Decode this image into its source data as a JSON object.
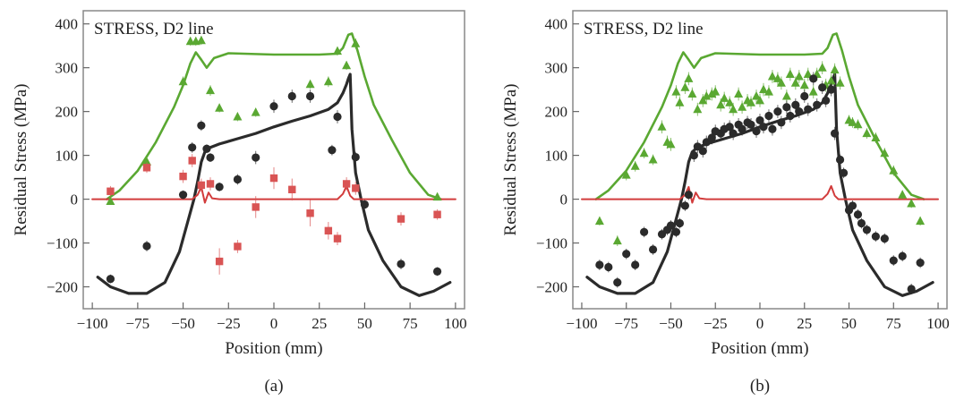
{
  "chart_data": [
    {
      "type": "scatter",
      "panel_label": "(a)",
      "title": "STRESS, D2 line",
      "xlabel": "Position (mm)",
      "ylabel": "Residual Stress (MPa)",
      "xlim": [
        -105,
        105
      ],
      "ylim": [
        -250,
        430
      ],
      "xticks": [
        "−100",
        "−75",
        "−50",
        "−25",
        "0",
        "25",
        "50",
        "75",
        "100"
      ],
      "xtick_values": [
        -100,
        -75,
        -50,
        -25,
        0,
        25,
        50,
        75,
        100
      ],
      "yticks": [
        "−200",
        "−100",
        "0",
        "100",
        "200",
        "300",
        "400"
      ],
      "ytick_values": [
        -200,
        -100,
        0,
        100,
        200,
        300,
        400
      ],
      "colors": {
        "green": "#5aa832",
        "black": "#2b2b2b",
        "red": "#d23c3c",
        "red_marker": "#d95454",
        "frame": "#888888"
      },
      "lines": [
        {
          "name": "green-model",
          "color": "#5aa832",
          "x": [
            -92,
            -85,
            -75,
            -65,
            -55,
            -50,
            -46,
            -43,
            -40,
            -37,
            -33,
            -25,
            0,
            25,
            35,
            38,
            41,
            43,
            46,
            50,
            55,
            65,
            75,
            85,
            92
          ],
          "y": [
            0,
            20,
            65,
            130,
            210,
            260,
            310,
            335,
            318,
            300,
            322,
            333,
            330,
            330,
            332,
            345,
            375,
            378,
            340,
            280,
            215,
            135,
            60,
            10,
            0
          ]
        },
        {
          "name": "black-model",
          "color": "#2b2b2b",
          "x": [
            -97,
            -90,
            -80,
            -70,
            -60,
            -52,
            -48,
            -44,
            -42,
            -40,
            -38,
            -35,
            -30,
            -20,
            -10,
            0,
            10,
            20,
            30,
            35,
            38,
            40,
            41,
            42,
            43,
            45,
            48,
            52,
            60,
            70,
            80,
            88,
            97
          ],
          "y": [
            -178,
            -200,
            -215,
            -215,
            -190,
            -120,
            -60,
            0,
            40,
            85,
            108,
            118,
            126,
            138,
            150,
            165,
            178,
            190,
            205,
            220,
            242,
            262,
            275,
            285,
            160,
            60,
            0,
            -70,
            -140,
            -200,
            -220,
            -210,
            -190
          ]
        },
        {
          "name": "red-model",
          "color": "#d23c3c",
          "x": [
            -100,
            -45,
            -42,
            -40,
            -38,
            -36,
            -34,
            -30,
            0,
            35,
            38,
            40,
            42,
            44,
            100
          ],
          "y": [
            0,
            0,
            10,
            28,
            -8,
            15,
            2,
            0,
            0,
            0,
            12,
            30,
            8,
            0,
            0
          ]
        }
      ],
      "series": [
        {
          "name": "green-data",
          "marker": "triangle",
          "color": "#5aa832",
          "x": [
            -90,
            -70,
            -50,
            -46,
            -43,
            -40,
            -35,
            -30,
            -20,
            -10,
            20,
            30,
            35,
            40,
            45,
            90
          ],
          "y": [
            -5,
            85,
            268,
            360,
            360,
            362,
            248,
            208,
            188,
            198,
            262,
            268,
            338,
            305,
            355,
            5
          ],
          "err": [
            8,
            10,
            12,
            10,
            10,
            10,
            12,
            10,
            10,
            10,
            10,
            12,
            10,
            10,
            12,
            8
          ]
        },
        {
          "name": "black-data",
          "marker": "circle",
          "color": "#2b2b2b",
          "x": [
            -90,
            -70,
            -50,
            -45,
            -40,
            -37,
            -35,
            -30,
            -20,
            -10,
            0,
            10,
            20,
            32,
            35,
            45,
            50,
            70,
            90
          ],
          "y": [
            -182,
            -107,
            10,
            118,
            168,
            115,
            95,
            28,
            45,
            95,
            212,
            235,
            235,
            112,
            188,
            96,
            -12,
            -148,
            -165
          ],
          "err": [
            10,
            12,
            10,
            12,
            12,
            10,
            10,
            10,
            12,
            15,
            15,
            15,
            15,
            12,
            15,
            12,
            10,
            12,
            10
          ]
        },
        {
          "name": "red-data",
          "marker": "square",
          "color": "#d95454",
          "x": [
            -90,
            -70,
            -50,
            -45,
            -40,
            -35,
            -30,
            -20,
            -10,
            0,
            10,
            20,
            30,
            35,
            40,
            45,
            70,
            90
          ],
          "y": [
            18,
            72,
            52,
            88,
            32,
            35,
            -142,
            -108,
            -18,
            48,
            22,
            -32,
            -72,
            -90,
            35,
            25,
            -45,
            -35
          ],
          "err": [
            12,
            12,
            15,
            15,
            15,
            15,
            30,
            15,
            25,
            25,
            25,
            30,
            20,
            15,
            15,
            15,
            15,
            12
          ]
        }
      ]
    },
    {
      "type": "scatter",
      "panel_label": "(b)",
      "title": "STRESS, D2 line",
      "xlabel": "Position (mm)",
      "ylabel": "Residual Stress (MPa)",
      "xlim": [
        -105,
        105
      ],
      "ylim": [
        -250,
        430
      ],
      "xticks": [
        "−100",
        "−75",
        "−50",
        "−25",
        "0",
        "25",
        "50",
        "75",
        "100"
      ],
      "xtick_values": [
        -100,
        -75,
        -50,
        -25,
        0,
        25,
        50,
        75,
        100
      ],
      "yticks": [
        "−200",
        "−100",
        "0",
        "100",
        "200",
        "300",
        "400"
      ],
      "ytick_values": [
        -200,
        -100,
        0,
        100,
        200,
        300,
        400
      ],
      "colors": {
        "green": "#5aa832",
        "black": "#2b2b2b",
        "red": "#d23c3c",
        "frame": "#888888"
      },
      "lines": [
        {
          "name": "green-model",
          "color": "#5aa832",
          "x": [
            -92,
            -85,
            -75,
            -65,
            -55,
            -50,
            -46,
            -43,
            -40,
            -37,
            -33,
            -25,
            0,
            25,
            35,
            38,
            41,
            43,
            46,
            50,
            55,
            65,
            75,
            85,
            92
          ],
          "y": [
            0,
            20,
            65,
            130,
            210,
            260,
            310,
            335,
            318,
            300,
            322,
            333,
            330,
            330,
            332,
            345,
            375,
            378,
            340,
            280,
            215,
            135,
            60,
            10,
            0
          ]
        },
        {
          "name": "black-model",
          "color": "#2b2b2b",
          "x": [
            -97,
            -90,
            -80,
            -70,
            -60,
            -52,
            -48,
            -44,
            -42,
            -40,
            -38,
            -35,
            -30,
            -20,
            -10,
            0,
            10,
            20,
            30,
            35,
            38,
            40,
            41,
            42,
            43,
            45,
            48,
            52,
            60,
            70,
            80,
            88,
            97
          ],
          "y": [
            -178,
            -200,
            -215,
            -215,
            -190,
            -120,
            -60,
            0,
            40,
            85,
            108,
            118,
            126,
            138,
            150,
            165,
            178,
            190,
            205,
            220,
            242,
            262,
            275,
            285,
            160,
            60,
            0,
            -70,
            -140,
            -200,
            -220,
            -210,
            -190
          ]
        },
        {
          "name": "red-model",
          "color": "#d23c3c",
          "x": [
            -100,
            -45,
            -42,
            -40,
            -38,
            -36,
            -34,
            -30,
            0,
            35,
            38,
            40,
            42,
            44,
            100
          ],
          "y": [
            0,
            0,
            10,
            28,
            -8,
            15,
            2,
            0,
            0,
            0,
            12,
            30,
            8,
            0,
            0
          ]
        }
      ],
      "series": [
        {
          "name": "green-data",
          "marker": "triangle",
          "color": "#5aa832",
          "x": [
            -90,
            -80,
            -75,
            -70,
            -65,
            -60,
            -55,
            -52,
            -50,
            -47,
            -45,
            -42,
            -40,
            -38,
            -35,
            -32,
            -30,
            -27,
            -25,
            -22,
            -20,
            -17,
            -15,
            -12,
            -10,
            -7,
            -5,
            -2,
            0,
            2,
            5,
            7,
            10,
            12,
            15,
            17,
            20,
            22,
            25,
            27,
            30,
            32,
            35,
            37,
            40,
            42,
            45,
            50,
            52,
            55,
            60,
            65,
            70,
            75,
            80,
            85,
            90
          ],
          "y": [
            -50,
            -95,
            55,
            75,
            105,
            90,
            165,
            130,
            125,
            245,
            220,
            255,
            275,
            240,
            205,
            225,
            235,
            240,
            245,
            215,
            230,
            220,
            205,
            240,
            210,
            225,
            220,
            235,
            225,
            250,
            245,
            280,
            275,
            265,
            235,
            285,
            265,
            280,
            260,
            285,
            245,
            285,
            300,
            260,
            270,
            295,
            265,
            180,
            175,
            170,
            150,
            140,
            105,
            65,
            10,
            -10,
            -50
          ],
          "err": [
            10,
            12,
            12,
            12,
            12,
            12,
            15,
            15,
            15,
            15,
            15,
            15,
            15,
            15,
            15,
            15,
            15,
            15,
            15,
            15,
            15,
            15,
            15,
            15,
            15,
            15,
            15,
            15,
            15,
            15,
            15,
            15,
            15,
            15,
            15,
            15,
            15,
            15,
            15,
            15,
            15,
            15,
            15,
            15,
            15,
            15,
            15,
            12,
            12,
            12,
            12,
            12,
            12,
            12,
            10,
            10,
            10
          ]
        },
        {
          "name": "black-data",
          "marker": "circle",
          "color": "#2b2b2b",
          "x": [
            -90,
            -85,
            -80,
            -75,
            -70,
            -65,
            -60,
            -55,
            -52,
            -50,
            -47,
            -45,
            -42,
            -40,
            -37,
            -35,
            -32,
            -30,
            -27,
            -25,
            -22,
            -20,
            -17,
            -15,
            -12,
            -10,
            -7,
            -5,
            -2,
            0,
            2,
            5,
            7,
            10,
            12,
            15,
            17,
            20,
            22,
            25,
            27,
            30,
            32,
            35,
            37,
            40,
            42,
            45,
            47,
            50,
            52,
            55,
            57,
            60,
            65,
            70,
            75,
            80,
            85,
            90
          ],
          "y": [
            -150,
            -155,
            -190,
            -125,
            -150,
            -75,
            -115,
            -80,
            -70,
            -60,
            -75,
            -55,
            -15,
            10,
            100,
            120,
            110,
            130,
            140,
            155,
            150,
            160,
            165,
            150,
            170,
            160,
            175,
            170,
            155,
            180,
            165,
            190,
            160,
            200,
            175,
            210,
            190,
            215,
            200,
            235,
            205,
            275,
            215,
            255,
            225,
            250,
            150,
            90,
            60,
            -25,
            -15,
            -35,
            -55,
            -70,
            -85,
            -90,
            -140,
            -130,
            -205,
            -145
          ],
          "err": [
            12,
            12,
            12,
            12,
            12,
            12,
            12,
            12,
            12,
            12,
            12,
            12,
            12,
            12,
            15,
            15,
            15,
            15,
            15,
            15,
            15,
            15,
            15,
            15,
            15,
            15,
            15,
            15,
            15,
            15,
            15,
            15,
            15,
            15,
            15,
            15,
            15,
            15,
            15,
            15,
            15,
            15,
            15,
            15,
            15,
            15,
            15,
            12,
            12,
            12,
            12,
            12,
            12,
            12,
            12,
            12,
            12,
            12,
            12,
            12
          ]
        }
      ]
    }
  ]
}
